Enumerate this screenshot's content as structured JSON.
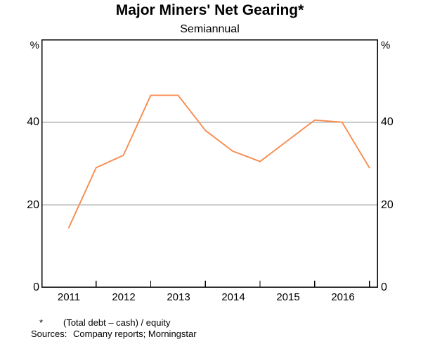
{
  "title": "Major Miners' Net Gearing*",
  "subtitle": "Semiannual",
  "y_axis": {
    "unit_left": "%",
    "unit_right": "%",
    "tick_labels": [
      "40",
      "20",
      "0"
    ]
  },
  "x_axis": {
    "year_labels": [
      "2011",
      "2012",
      "2013",
      "2014",
      "2015",
      "2016"
    ]
  },
  "footnote": {
    "marker": "*",
    "text": "(Total debt – cash) / equity"
  },
  "sources": {
    "label": "Sources:",
    "text": "Company reports; Morningstar"
  },
  "colors": {
    "line": "#f88c51",
    "grid": "#b0b0b0",
    "axis": "#000000"
  },
  "chart_data": {
    "type": "line",
    "title": "Major Miners' Net Gearing*",
    "subtitle": "Semiannual",
    "ylabel": "%",
    "ylim": [
      0,
      60
    ],
    "xlim": [
      2011.0,
      2017.16
    ],
    "gridlines_y": [
      20,
      40
    ],
    "y_tick_values": [
      0,
      20,
      40
    ],
    "x_boundary_ticks": [
      2012,
      2013,
      2014,
      2015,
      2016,
      2017
    ],
    "x_tick_label_positions": [
      2011.5,
      2012.5,
      2013.5,
      2014.5,
      2015.5,
      2016.5
    ],
    "legend": "none",
    "series": [
      {
        "name": "Major miners' net gearing (%)",
        "periods": [
          "2011 H1",
          "2011 H2",
          "2012 H1",
          "2012 H2",
          "2013 H1",
          "2013 H2",
          "2014 H1",
          "2014 H2",
          "2015 H1",
          "2015 H2",
          "2016 H1",
          "2016 H2"
        ],
        "x": [
          2011.5,
          2012.0,
          2012.5,
          2013.0,
          2013.5,
          2014.0,
          2014.5,
          2015.0,
          2015.5,
          2016.0,
          2016.5,
          2017.0
        ],
        "values": [
          14.5,
          29,
          32,
          46.5,
          46.5,
          38,
          33,
          30.5,
          35.5,
          40.5,
          40,
          29
        ]
      }
    ]
  }
}
